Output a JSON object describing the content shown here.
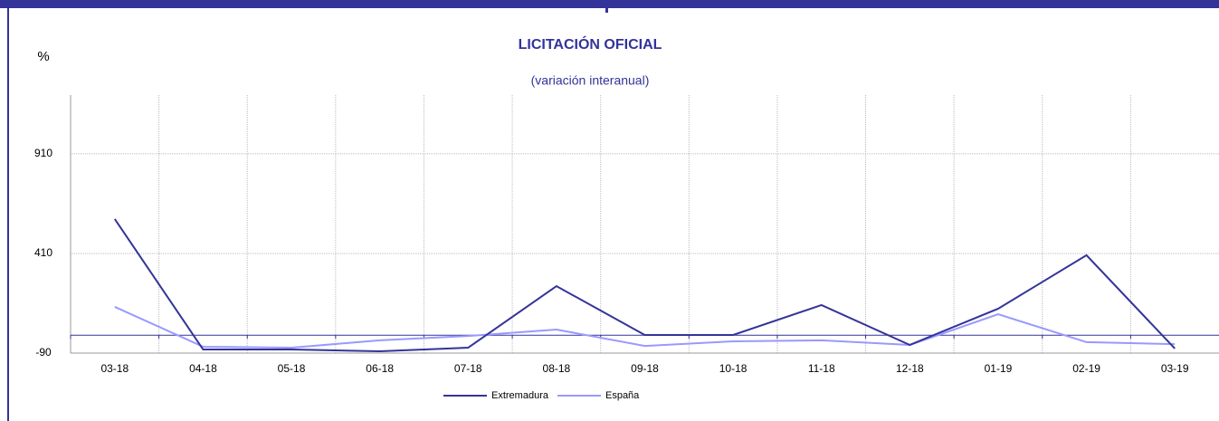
{
  "chart_data": {
    "type": "line",
    "title": "LICITACIÓN OFICIAL",
    "subtitle": "(variación interanual)",
    "y_label": "%",
    "categories": [
      "03-18",
      "04-18",
      "05-18",
      "06-18",
      "07-18",
      "08-18",
      "09-18",
      "10-18",
      "11-18",
      "12-18",
      "01-19",
      "02-19",
      "03-19"
    ],
    "series": [
      {
        "name": "Extremadura",
        "color": "#333399",
        "values": [
          583,
          -72,
          -72,
          -81,
          -63,
          246,
          1,
          1,
          151,
          -49,
          133,
          401,
          -67
        ]
      },
      {
        "name": "España",
        "color": "#9999ff",
        "values": [
          142,
          -58,
          -63,
          -26,
          -4,
          28,
          -54,
          -31,
          -26,
          -49,
          105,
          -35,
          -45
        ]
      }
    ],
    "ylim": [
      -90,
      1205
    ],
    "yticks": [
      -90,
      410,
      910
    ],
    "grid": true,
    "legend": "bottom"
  }
}
